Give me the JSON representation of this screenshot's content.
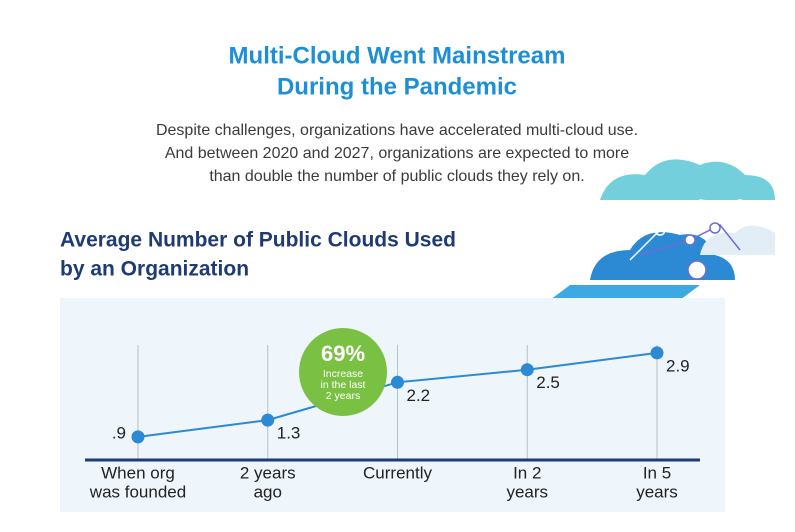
{
  "header": {
    "title": [
      "Multi-Cloud Went Mainstream",
      "During the Pandemic"
    ],
    "subtitle": [
      "Despite challenges, organizations have accelerated multi-cloud use.",
      "And between 2020 and 2027, organizations are expected to more",
      "than double the number of public clouds they rely on."
    ]
  },
  "chart_data": {
    "type": "line",
    "title": [
      "Average Number of Public Clouds Used",
      "by an Organization"
    ],
    "categories": [
      [
        "When org",
        "was founded"
      ],
      [
        "2 years",
        "ago"
      ],
      [
        "Currently"
      ],
      [
        "In 2",
        "years"
      ],
      [
        "In 5",
        "years"
      ]
    ],
    "values": [
      0.9,
      1.3,
      2.2,
      2.5,
      2.9
    ],
    "value_labels": [
      ".9",
      "1.3",
      "2.2",
      "2.5",
      "2.9"
    ],
    "color": "#2b8ad3",
    "ylim": [
      0.35,
      4.16
    ],
    "annotation": {
      "value": "69%",
      "text": [
        "Increase",
        "in the last",
        "2 years"
      ],
      "color": "#7ac143"
    }
  }
}
